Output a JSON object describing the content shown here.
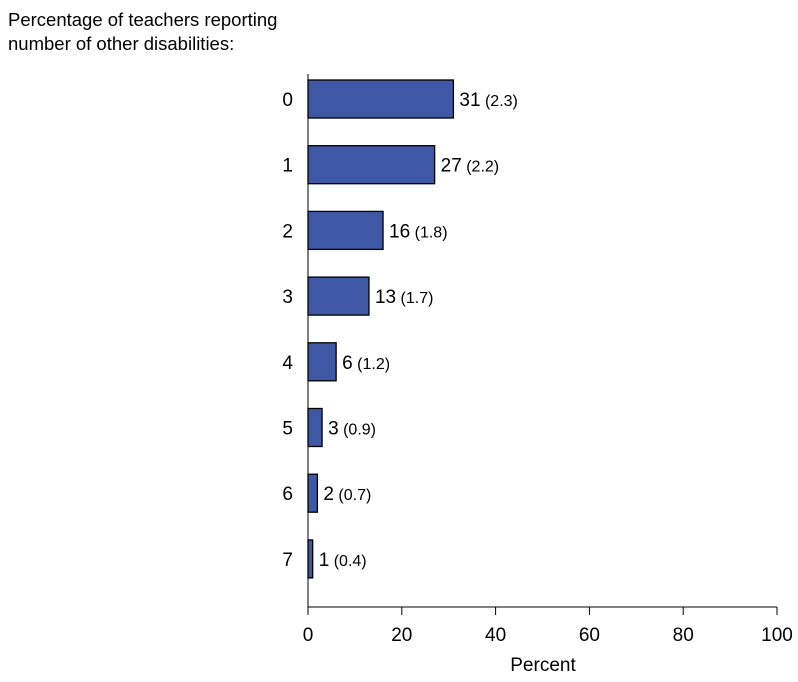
{
  "chart_data": {
    "type": "bar",
    "orientation": "horizontal",
    "title": "Percentage of teachers reporting number of other disabilities:",
    "categories": [
      "0",
      "1",
      "2",
      "3",
      "4",
      "5",
      "6",
      "7"
    ],
    "values": [
      31,
      27,
      16,
      13,
      6,
      3,
      2,
      1
    ],
    "standard_errors": [
      2.3,
      2.2,
      1.8,
      1.7,
      1.2,
      0.9,
      0.7,
      0.4
    ],
    "value_labels": [
      "31",
      "27",
      "16",
      "13",
      "6",
      "3",
      "2",
      "1"
    ],
    "error_labels": [
      "(2.3)",
      "(2.2)",
      "(1.8)",
      "(1.7)",
      "(1.2)",
      "(0.9)",
      "(0.7)",
      "(0.4)"
    ],
    "xlabel": "Percent",
    "ylabel": "",
    "xlim": [
      0,
      100
    ],
    "xticks": [
      0,
      20,
      40,
      60,
      80,
      100
    ],
    "grid": false,
    "bar_color": "#3e58a6",
    "bar_edge_color": "#000000"
  }
}
